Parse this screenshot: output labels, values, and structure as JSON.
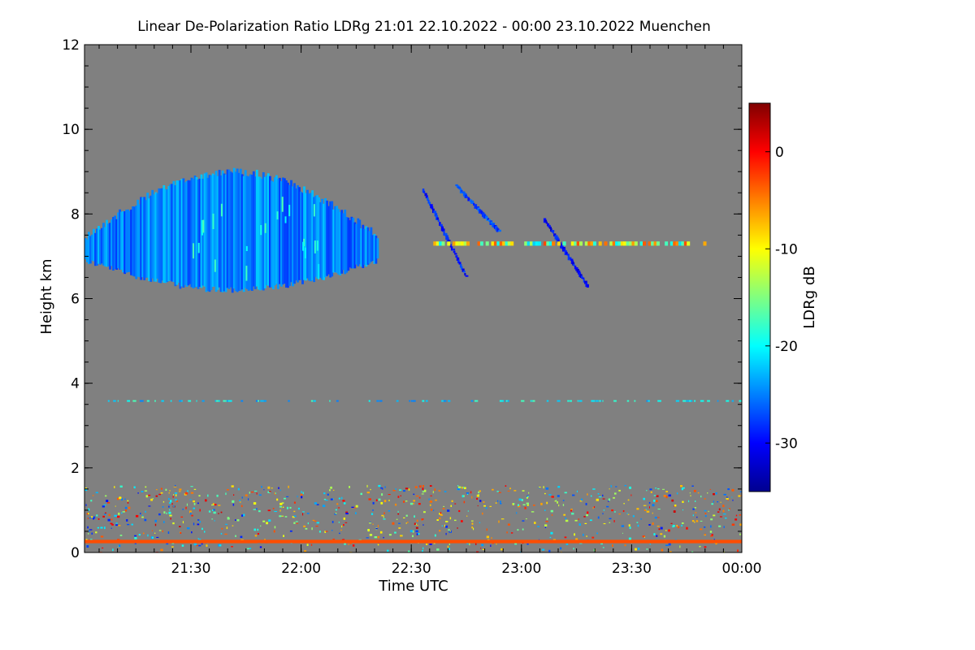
{
  "chart_data": {
    "type": "heatmap",
    "title": "Linear De-Polarization Ratio LDRg   21:01 22.10.2022 - 00:00 23.10.2022 Muenchen",
    "xlabel": "Time UTC",
    "ylabel": "Height km",
    "x_range_hours": [
      21.017,
      24.0
    ],
    "x_ticks": [
      {
        "value": 21.5,
        "label": "21:30"
      },
      {
        "value": 22.0,
        "label": "22:00"
      },
      {
        "value": 22.5,
        "label": "22:30"
      },
      {
        "value": 23.0,
        "label": "23:00"
      },
      {
        "value": 23.5,
        "label": "23:30"
      },
      {
        "value": 24.0,
        "label": "00:00"
      }
    ],
    "ylim": [
      0,
      12
    ],
    "y_ticks": [
      {
        "value": 0,
        "label": "0"
      },
      {
        "value": 2,
        "label": "2"
      },
      {
        "value": 4,
        "label": "4"
      },
      {
        "value": 6,
        "label": "6"
      },
      {
        "value": 8,
        "label": "8"
      },
      {
        "value": 10,
        "label": "10"
      },
      {
        "value": 12,
        "label": "12"
      }
    ],
    "colorbar": {
      "label": "LDRg dB",
      "range": [
        -35,
        5
      ],
      "ticks": [
        {
          "value": 0,
          "label": "0"
        },
        {
          "value": -10,
          "label": "-10"
        },
        {
          "value": -20,
          "label": "-20"
        },
        {
          "value": -30,
          "label": "-30"
        }
      ],
      "colors": [
        "#00008f",
        "#0000ff",
        "#0080ff",
        "#00ffff",
        "#80ff80",
        "#ffff00",
        "#ff8000",
        "#ff0000",
        "#800000"
      ]
    },
    "background_color": "#808080",
    "features": [
      {
        "name": "cirrus-cloud",
        "t_start": 21.017,
        "t_end": 22.35,
        "base_km": 6.2,
        "top_km": 9.0,
        "ldr_db": -25
      },
      {
        "name": "fall-streak-1",
        "t_start": 22.55,
        "t_end": 22.75,
        "base_km": 6.5,
        "top_km": 8.6,
        "ldr_db": -29
      },
      {
        "name": "fall-streak-2",
        "t_start": 22.7,
        "t_end": 22.9,
        "base_km": 7.6,
        "top_km": 8.7,
        "ldr_db": -27
      },
      {
        "name": "fall-streak-3",
        "t_start": 23.1,
        "t_end": 23.3,
        "base_km": 6.3,
        "top_km": 7.9,
        "ldr_db": -30
      },
      {
        "name": "liquid-layer",
        "t_start": 22.6,
        "t_end": 23.85,
        "base_km": 7.25,
        "top_km": 7.35,
        "ldr_db": -12
      },
      {
        "name": "aerosol-layer",
        "t_start": 21.1,
        "t_end": 24.0,
        "base_km": 3.5,
        "top_km": 3.6,
        "ldr_db": -21
      },
      {
        "name": "boundary-layer-noise",
        "t_start": 21.017,
        "t_end": 24.0,
        "base_km": 0.0,
        "top_km": 1.6,
        "ldr_db": -10
      },
      {
        "name": "near-range-overlap",
        "t_start": 21.017,
        "t_end": 24.0,
        "base_km": 0.22,
        "top_km": 0.3,
        "ldr_db": -3
      }
    ]
  }
}
